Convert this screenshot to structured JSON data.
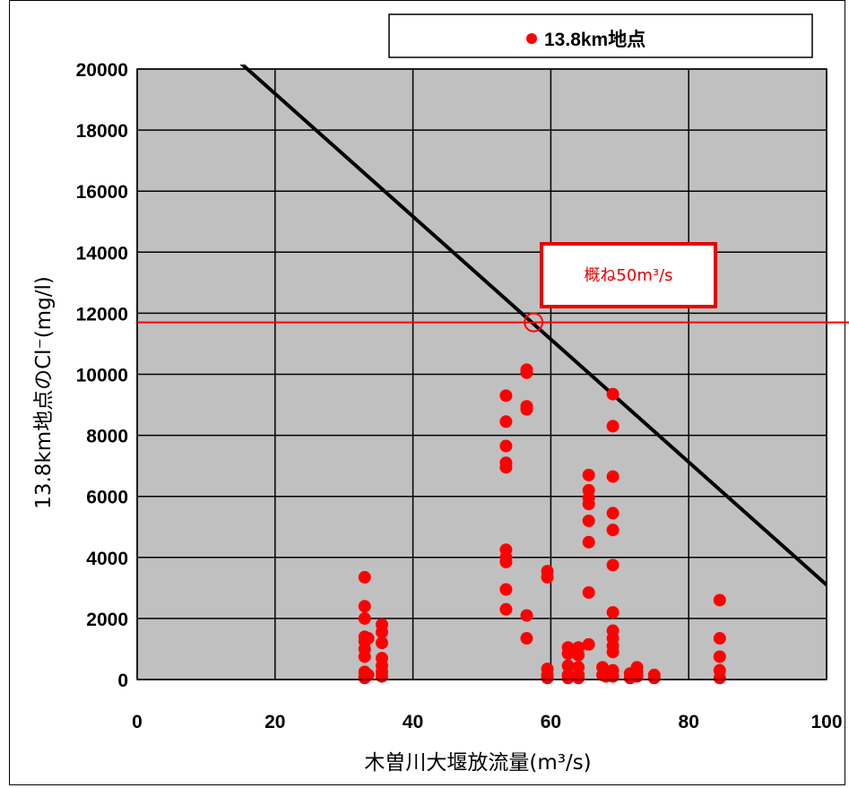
{
  "chart_data": {
    "type": "scatter",
    "xlabel": "木曽川大堰放流量(m³/s)",
    "ylabel": "13.8km地点のCl⁻(mg/l)",
    "xlim": [
      0,
      100
    ],
    "ylim": [
      0,
      20000
    ],
    "x_ticks": [
      "0",
      "20",
      "40",
      "60",
      "80",
      "100"
    ],
    "y_ticks": [
      "0",
      "2000",
      "4000",
      "6000",
      "8000",
      "10000",
      "12000",
      "14000",
      "16000",
      "18000",
      "20000"
    ],
    "grid": true,
    "background_color": "#c0c0c0",
    "legend": {
      "label": "13.8km地点",
      "position": "top-right"
    },
    "annotation": {
      "text": "概ね50m³/s"
    },
    "threshold_y": 11700,
    "highlight_point": [
      57.5,
      11700
    ],
    "trend_line": {
      "x": [
        13.5,
        100
      ],
      "y": [
        20500,
        3100
      ],
      "color": "#000000"
    },
    "series": [
      {
        "name": "13.8km地点",
        "color": "#ff0000",
        "points": [
          [
            33,
            3350
          ],
          [
            33,
            2400
          ],
          [
            33,
            2000
          ],
          [
            33,
            1400
          ],
          [
            33,
            1250
          ],
          [
            33,
            1000
          ],
          [
            33,
            750
          ],
          [
            33,
            250
          ],
          [
            33,
            100
          ],
          [
            33,
            50
          ],
          [
            33.5,
            1350
          ],
          [
            33.5,
            150
          ],
          [
            35.5,
            1800
          ],
          [
            35.5,
            1550
          ],
          [
            35.5,
            1200
          ],
          [
            35.5,
            700
          ],
          [
            35.5,
            450
          ],
          [
            35.5,
            250
          ],
          [
            35.5,
            100
          ],
          [
            53.5,
            9300
          ],
          [
            53.5,
            8450
          ],
          [
            53.5,
            7650
          ],
          [
            53.5,
            7100
          ],
          [
            53.5,
            6950
          ],
          [
            53.5,
            4250
          ],
          [
            53.5,
            4000
          ],
          [
            53.5,
            3850
          ],
          [
            53.5,
            2950
          ],
          [
            53.5,
            2300
          ],
          [
            56.5,
            10150
          ],
          [
            56.5,
            10050
          ],
          [
            56.5,
            8950
          ],
          [
            56.5,
            8850
          ],
          [
            56.5,
            2100
          ],
          [
            56.5,
            1350
          ],
          [
            59.5,
            3550
          ],
          [
            59.5,
            3350
          ],
          [
            59.5,
            350
          ],
          [
            59.5,
            150
          ],
          [
            59.5,
            50
          ],
          [
            62.5,
            1050
          ],
          [
            62.5,
            850
          ],
          [
            62.5,
            450
          ],
          [
            62.5,
            150
          ],
          [
            62.5,
            50
          ],
          [
            64,
            1050
          ],
          [
            64,
            800
          ],
          [
            64,
            400
          ],
          [
            64,
            150
          ],
          [
            64,
            50
          ],
          [
            65.5,
            6700
          ],
          [
            65.5,
            6200
          ],
          [
            65.5,
            5950
          ],
          [
            65.5,
            5750
          ],
          [
            65.5,
            5200
          ],
          [
            65.5,
            4500
          ],
          [
            65.5,
            2850
          ],
          [
            65.5,
            1150
          ],
          [
            67.5,
            400
          ],
          [
            67.5,
            150
          ],
          [
            68,
            250
          ],
          [
            68,
            100
          ],
          [
            69,
            9350
          ],
          [
            69,
            8300
          ],
          [
            69,
            6650
          ],
          [
            69,
            5450
          ],
          [
            69,
            4900
          ],
          [
            69,
            3750
          ],
          [
            69,
            2200
          ],
          [
            69,
            1600
          ],
          [
            69,
            1350
          ],
          [
            69,
            1100
          ],
          [
            69,
            900
          ],
          [
            69,
            300
          ],
          [
            69,
            100
          ],
          [
            71.5,
            200
          ],
          [
            71.5,
            50
          ],
          [
            72.5,
            400
          ],
          [
            72.5,
            250
          ],
          [
            72.5,
            100
          ],
          [
            75,
            150
          ],
          [
            75,
            50
          ],
          [
            84.5,
            2600
          ],
          [
            84.5,
            1350
          ],
          [
            84.5,
            750
          ],
          [
            84.5,
            300
          ],
          [
            84.5,
            50
          ]
        ]
      }
    ]
  }
}
